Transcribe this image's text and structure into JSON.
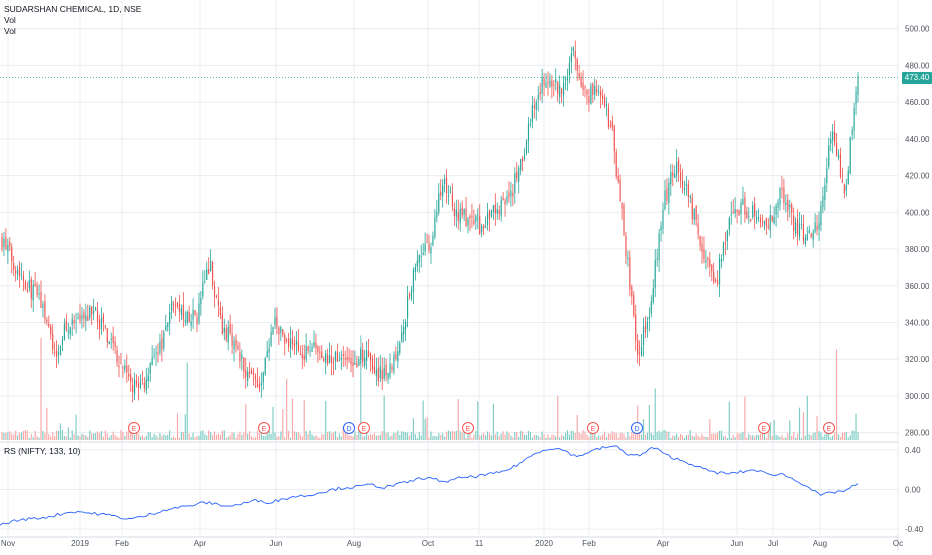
{
  "colors": {
    "up": "#26a69a",
    "down": "#ef5350",
    "up_vol": "#7fcdc4",
    "down_vol": "#f7a9a7",
    "rs_line": "#2962ff",
    "grid": "#e9ecf1",
    "axis_text": "#50535e",
    "earnings": "#ef5350",
    "dividend": "#2962ff",
    "last_price_line": "#26a69a"
  },
  "header": {
    "symbol_line": "SUDARSHAN CHEMICAL, 1D, NSE",
    "vol_line1": "Vol",
    "vol_line2": "Vol"
  },
  "rs_panel": {
    "label": "RS (NIFTY, 133, 10)"
  },
  "chart_data": [
    {
      "type": "candlestick",
      "title": "SUDARSHAN CHEMICAL, 1D, NSE",
      "ylim": [
        276,
        508
      ],
      "y_ticks": [
        "500.00",
        "480.00",
        "460.00",
        "440.00",
        "420.00",
        "400.00",
        "380.00",
        "360.00",
        "340.00",
        "320.00",
        "300.00",
        "280.00"
      ],
      "x_ticks": [
        "Nov",
        "2019",
        "Feb",
        "Apr",
        "Jun",
        "Aug",
        "Oct",
        "11",
        "2020",
        "Feb",
        "Apr",
        "Jun",
        "Jul",
        "Aug",
        "Oc"
      ],
      "last_price": "473.40",
      "events": [
        "E",
        "E",
        "D",
        "E",
        "E",
        "E",
        "D",
        "E",
        "E"
      ],
      "price_path_approx": [
        [
          "2018-11",
          385
        ],
        [
          "2018-11",
          372
        ],
        [
          "2018-12",
          360
        ],
        [
          "2018-12",
          352
        ],
        [
          "2018-12",
          322
        ],
        [
          "2019-01",
          340
        ],
        [
          "2019-01",
          338
        ],
        [
          "2019-01",
          349
        ],
        [
          "2019-02",
          333
        ],
        [
          "2019-02",
          321
        ],
        [
          "2019-02",
          305
        ],
        [
          "2019-03",
          308
        ],
        [
          "2019-03",
          322
        ],
        [
          "2019-03",
          347
        ],
        [
          "2019-04",
          345
        ],
        [
          "2019-04",
          342
        ],
        [
          "2019-04",
          373
        ],
        [
          "2019-05",
          336
        ],
        [
          "2019-05",
          329
        ],
        [
          "2019-05",
          311
        ],
        [
          "2019-06",
          308
        ],
        [
          "2019-06",
          339
        ],
        [
          "2019-06",
          332
        ],
        [
          "2019-07",
          323
        ],
        [
          "2019-07",
          327
        ],
        [
          "2019-07",
          318
        ],
        [
          "2019-08",
          323
        ],
        [
          "2019-08",
          319
        ],
        [
          "2019-08",
          322
        ],
        [
          "2019-09",
          312
        ],
        [
          "2019-09",
          316
        ],
        [
          "2019-09",
          340
        ],
        [
          "2019-10",
          375
        ],
        [
          "2019-10",
          380
        ],
        [
          "2019-10",
          419
        ],
        [
          "2019-11",
          400
        ],
        [
          "2019-11",
          396
        ],
        [
          "2019-11",
          391
        ],
        [
          "2019-12",
          402
        ],
        [
          "2019-12",
          406
        ],
        [
          "2019-12",
          425
        ],
        [
          "2020-01",
          458
        ],
        [
          "2020-01",
          475
        ],
        [
          "2020-01",
          465
        ],
        [
          "2020-02",
          488
        ],
        [
          "2020-02",
          463
        ],
        [
          "2020-02",
          468
        ],
        [
          "2020-03",
          445
        ],
        [
          "2020-03",
          387
        ],
        [
          "2020-03",
          322
        ],
        [
          "2020-03",
          350
        ],
        [
          "2020-04",
          405
        ],
        [
          "2020-04",
          428
        ],
        [
          "2020-04",
          406
        ],
        [
          "2020-05",
          382
        ],
        [
          "2020-05",
          360
        ],
        [
          "2020-05",
          392
        ],
        [
          "2020-06",
          404
        ],
        [
          "2020-06",
          399
        ],
        [
          "2020-06",
          388
        ],
        [
          "2020-07",
          412
        ],
        [
          "2020-07",
          395
        ],
        [
          "2020-07",
          386
        ],
        [
          "2020-08",
          395
        ],
        [
          "2020-08",
          445
        ],
        [
          "2020-08",
          412
        ],
        [
          "2020-08",
          474
        ]
      ]
    },
    {
      "type": "line",
      "title": "RS (NIFTY, 133, 10)",
      "ylim": [
        -0.46,
        0.46
      ],
      "y_ticks": [
        "0.40",
        "0.00",
        "-0.40"
      ],
      "values_approx": [
        -0.36,
        -0.32,
        -0.3,
        -0.29,
        -0.27,
        -0.24,
        -0.22,
        -0.24,
        -0.25,
        -0.27,
        -0.3,
        -0.28,
        -0.24,
        -0.2,
        -0.18,
        -0.16,
        -0.13,
        -0.15,
        -0.17,
        -0.14,
        -0.11,
        -0.13,
        -0.1,
        -0.07,
        -0.06,
        -0.03,
        0.0,
        0.02,
        0.03,
        0.05,
        0.02,
        0.05,
        0.08,
        0.12,
        0.1,
        0.08,
        0.12,
        0.13,
        0.15,
        0.17,
        0.22,
        0.3,
        0.38,
        0.42,
        0.4,
        0.33,
        0.38,
        0.42,
        0.44,
        0.36,
        0.34,
        0.43,
        0.35,
        0.3,
        0.26,
        0.2,
        0.17,
        0.16,
        0.18,
        0.2,
        0.15,
        0.16,
        0.1,
        0.04,
        -0.06,
        -0.03,
        -0.01,
        0.06
      ]
    }
  ]
}
